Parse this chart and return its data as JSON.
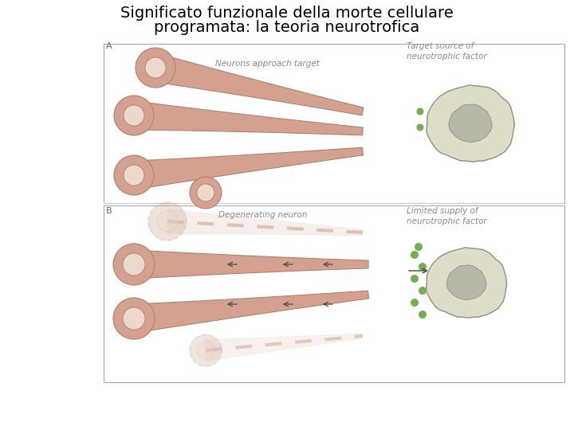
{
  "title_line1": "Significato funzionale della morte cellulare",
  "title_line2": "programata: la teoria neurotrofica",
  "title_fontsize": 14,
  "background_color": "#ffffff",
  "neuron_color": "#d4a090",
  "neuron_nucleus_color": "#ecd8cc",
  "neuron_edge_color": "#b08070",
  "target_cell_color": "#ddddc8",
  "target_nucleus_color": "#b8b8a8",
  "target_edge_color": "#909080",
  "dashed_color": "#d4b0a0",
  "axon_color": "#d4a090",
  "axon_edge_color": "#b08070",
  "green_dot_color": "#70b050",
  "arrow_color": "#404040",
  "label_color": "#555555",
  "label_A": "A",
  "label_B": "B",
  "label_neurons_approach": "Neurons approach target",
  "label_target_source": "Target source of\nneurotrophic factor",
  "label_degenerating": "Degenerating neuron",
  "label_limited_supply": "Limited supply of\nneurotrophic factor"
}
